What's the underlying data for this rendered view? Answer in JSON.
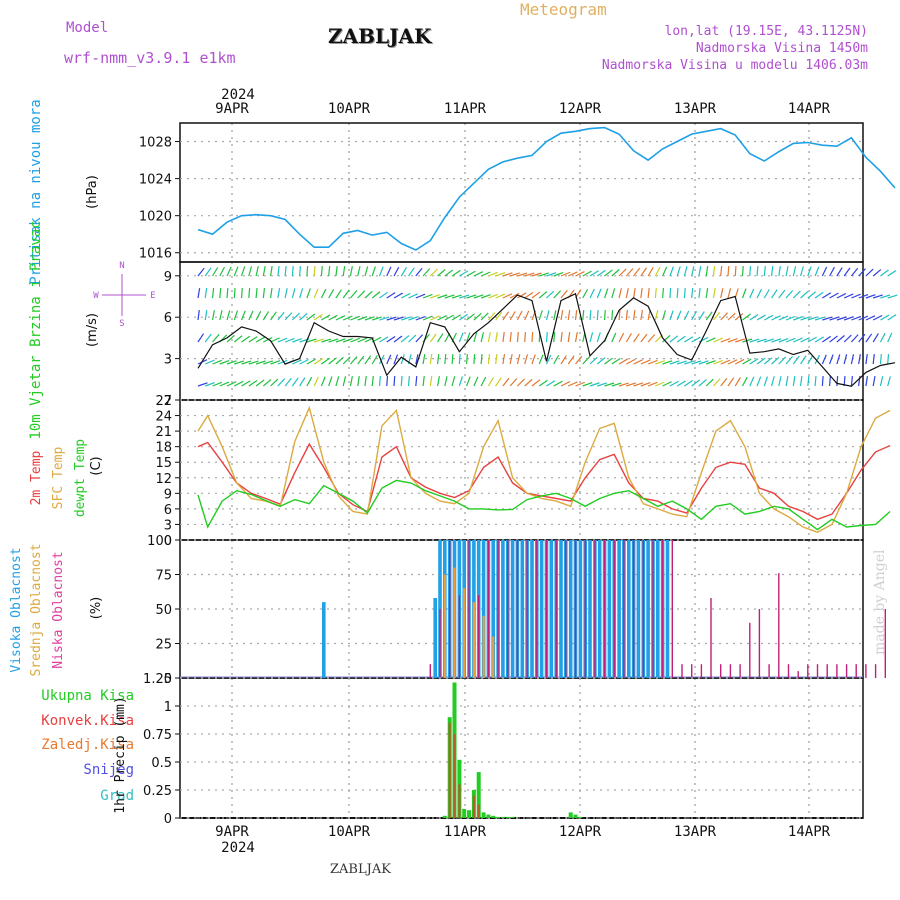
{
  "header": {
    "model_label": "Model",
    "model_name": "wrf-nmm_v3.9.1  e1km",
    "station": "ZABLJAK",
    "meteogram": "Meteogram",
    "lonlat": "lon,lat (19.15E, 43.1125N)",
    "altitude": "Nadmorska Visina 1450m",
    "altitude_model": "Nadmorska Visina u modelu 1406.03m",
    "year_top": "2024",
    "year_bottom": "2024",
    "footer_station": "ZABLJAK",
    "watermark": "made by Angel",
    "days": [
      "9APR",
      "10APR",
      "11APR",
      "12APR",
      "13APR",
      "14APR"
    ]
  },
  "colors": {
    "pressure": "#1ea0e6",
    "temp2m": "#e84040",
    "sfc": "#dcaa40",
    "dewpt": "#22cc22",
    "high_cloud": "#22a0e6",
    "mid_cloud": "#e6a040",
    "low_cloud": "#c0207a",
    "precip_total": "#22cc22",
    "precip_conv": "#e84040",
    "precip_frz": "#e67a30",
    "snow": "#5050e0",
    "grad": "#30c0c0",
    "purple": "#b050d0"
  },
  "chart_data": [
    {
      "type": "line",
      "panel": "pressure",
      "ylabel": "Pritisak na nivou mora",
      "unit": "(hPa)",
      "ylim": [
        1015,
        1030
      ],
      "yticks": [
        1016,
        1020,
        1024,
        1028
      ],
      "grid": true,
      "x_unit": "hours since 2024-04-08 18:00",
      "series": [
        {
          "x": [
            0,
            3,
            6,
            9,
            12,
            15,
            18,
            21,
            24,
            27,
            30,
            33,
            36,
            39,
            42,
            45,
            48,
            51,
            54,
            57,
            60,
            63,
            66,
            69,
            72,
            75,
            78,
            81,
            84,
            87,
            90,
            93,
            96,
            99,
            102,
            105,
            108,
            111,
            114,
            117,
            120,
            123,
            126,
            129,
            132,
            135,
            138,
            141,
            144
          ],
          "values": [
            1018.5,
            1018.0,
            1019.3,
            1020.0,
            1020.1,
            1020.0,
            1019.6,
            1018.0,
            1016.6,
            1016.6,
            1018.1,
            1018.4,
            1017.9,
            1018.2,
            1017.0,
            1016.3,
            1017.3,
            1019.8,
            1022.0,
            1023.5,
            1025.0,
            1025.8,
            1026.2,
            1026.5,
            1028.0,
            1028.9,
            1029.1,
            1029.4,
            1029.5,
            1028.8,
            1027.0,
            1026.0,
            1027.2,
            1028.0,
            1028.8,
            1029.1,
            1029.4,
            1028.7,
            1026.7,
            1025.9,
            1026.9,
            1027.8,
            1027.9,
            1027.6,
            1027.5,
            1028.4,
            1026.3,
            1024.8,
            1023.0
          ]
        }
      ]
    },
    {
      "type": "line",
      "panel": "wind",
      "ylabel": "10m Vjetar Brzina i Pravac",
      "unit": "(m/s)",
      "compass": "N",
      "compass_w": "W",
      "compass_e": "E",
      "compass_s": "S",
      "ylim": [
        0,
        10
      ],
      "ytick_labels": [
        "3",
        "6",
        "9"
      ],
      "ytick_values": [
        3,
        6,
        9
      ],
      "grid": true,
      "x_unit": "hours since 2024-04-08 18:00",
      "series": [
        {
          "x": [
            0,
            3,
            6,
            9,
            12,
            15,
            18,
            21,
            24,
            27,
            30,
            33,
            36,
            39,
            42,
            45,
            48,
            51,
            54,
            57,
            60,
            63,
            66,
            69,
            72,
            75,
            78,
            81,
            84,
            87,
            90,
            93,
            96,
            99,
            102,
            105,
            108,
            111,
            114,
            117,
            120,
            123,
            126,
            129,
            132,
            135,
            138,
            141,
            144
          ],
          "values": [
            2.3,
            4.0,
            4.5,
            5.3,
            5.0,
            4.3,
            2.6,
            3.0,
            5.6,
            5.0,
            4.6,
            4.6,
            4.5,
            1.8,
            3.1,
            2.4,
            5.6,
            5.3,
            3.5,
            4.8,
            5.6,
            6.6,
            7.6,
            7.2,
            2.8,
            7.2,
            7.7,
            3.2,
            4.3,
            6.5,
            7.4,
            6.8,
            4.5,
            3.3,
            2.9,
            5.0,
            7.2,
            7.5,
            3.4,
            3.5,
            3.7,
            3.3,
            3.6,
            2.4,
            1.2,
            1.0,
            2.0,
            2.5,
            2.7
          ]
        }
      ]
    },
    {
      "type": "line",
      "panel": "temperature",
      "ylabel_2m": "2m Temp",
      "ylabel_sfc": "SFC Temp",
      "ylabel_dew": "dewpt Temp",
      "unit": "(C)",
      "ylim": [
        0,
        27
      ],
      "yticks": [
        0,
        3,
        6,
        9,
        12,
        15,
        18,
        21,
        24,
        27
      ],
      "grid": true,
      "x_unit": "hours since 2024-04-08 18:00",
      "series": [
        {
          "name": "2m Temp",
          "x": [
            0,
            2,
            5,
            8,
            11,
            14,
            17,
            20,
            23,
            26,
            29,
            32,
            35,
            38,
            41,
            44,
            47,
            50,
            53,
            56,
            59,
            62,
            65,
            68,
            71,
            74,
            77,
            80,
            83,
            86,
            89,
            92,
            95,
            98,
            101,
            104,
            107,
            110,
            113,
            116,
            119,
            122,
            125,
            128,
            131,
            134,
            137,
            140,
            143
          ],
          "values": [
            18.0,
            18.8,
            15.0,
            11.0,
            9.0,
            8.0,
            6.9,
            13.0,
            18.5,
            14.0,
            9.0,
            6.8,
            5.5,
            16.0,
            18.0,
            12.0,
            10.2,
            9.0,
            8.2,
            9.5,
            14.0,
            16.0,
            11.0,
            9.0,
            8.5,
            8.0,
            7.5,
            12.0,
            15.5,
            16.5,
            11.0,
            8.0,
            7.5,
            6.0,
            5.2,
            10.0,
            14.0,
            15.0,
            14.6,
            10.0,
            9.0,
            6.5,
            5.5,
            4.0,
            5.0,
            9.0,
            13.5,
            17.0,
            18.2
          ]
        },
        {
          "name": "SFC Temp",
          "x": [
            0,
            2,
            5,
            8,
            11,
            14,
            17,
            20,
            23,
            26,
            29,
            32,
            35,
            38,
            41,
            44,
            47,
            50,
            53,
            56,
            59,
            62,
            65,
            68,
            71,
            74,
            77,
            80,
            83,
            86,
            89,
            92,
            95,
            98,
            101,
            104,
            107,
            110,
            113,
            116,
            119,
            122,
            125,
            128,
            131,
            134,
            137,
            140,
            143
          ],
          "values": [
            21.0,
            24.0,
            18.0,
            11.0,
            8.0,
            7.5,
            6.5,
            19.0,
            25.5,
            15.0,
            8.5,
            5.5,
            5.0,
            22.0,
            25.0,
            12.0,
            9.0,
            7.5,
            7.0,
            9.0,
            18.0,
            23.0,
            12.0,
            9.0,
            8.0,
            7.5,
            6.5,
            15.0,
            21.5,
            22.5,
            12.0,
            7.0,
            6.0,
            5.0,
            4.5,
            13.0,
            21.0,
            23.0,
            18.0,
            9.0,
            6.0,
            4.5,
            2.5,
            1.5,
            3.0,
            9.0,
            18.0,
            23.5,
            25.0
          ]
        },
        {
          "name": "dewpt Temp",
          "x": [
            0,
            2,
            5,
            8,
            11,
            14,
            17,
            20,
            23,
            26,
            29,
            32,
            35,
            38,
            41,
            44,
            47,
            50,
            53,
            56,
            59,
            62,
            65,
            68,
            71,
            74,
            77,
            80,
            83,
            86,
            89,
            92,
            95,
            98,
            101,
            104,
            107,
            110,
            113,
            116,
            119,
            122,
            125,
            128,
            131,
            134,
            137,
            140,
            143
          ],
          "values": [
            8.7,
            2.5,
            7.5,
            9.5,
            8.8,
            7.6,
            6.5,
            7.8,
            7.0,
            10.5,
            9.0,
            7.5,
            5.2,
            10.0,
            11.5,
            11.0,
            9.5,
            8.5,
            7.5,
            6.0,
            6.0,
            5.8,
            5.9,
            7.8,
            8.5,
            9.0,
            8.0,
            6.5,
            8.0,
            9.0,
            9.5,
            8.0,
            6.5,
            7.5,
            6.0,
            4.0,
            6.5,
            7.0,
            5.0,
            5.5,
            6.5,
            6.0,
            4.0,
            2.0,
            4.0,
            2.5,
            2.8,
            3.0,
            5.5
          ]
        }
      ]
    },
    {
      "type": "bar",
      "panel": "clouds",
      "ylabel_high": "Visoka Oblacnost",
      "ylabel_mid": "Srednja Oblacnost",
      "ylabel_low": "Niska Oblacnost",
      "unit": "(%)",
      "ylim": [
        0,
        100
      ],
      "yticks": [
        0,
        25,
        50,
        75,
        100
      ],
      "grid": true,
      "x_unit": "hours since 2024-04-08 18:00",
      "series": [
        {
          "name": "Visoka Oblacnost",
          "x": [
            26,
            49,
            50,
            51,
            52,
            53,
            54,
            55,
            56,
            57,
            58,
            59,
            60,
            61,
            62,
            63,
            64,
            65,
            66,
            67,
            68,
            69,
            70,
            71,
            72,
            73,
            74,
            75,
            76,
            77,
            78,
            79,
            80,
            81,
            82,
            83,
            84,
            85,
            86,
            87,
            88,
            89,
            90,
            91,
            92,
            93,
            94,
            95,
            96,
            97
          ],
          "values": [
            55,
            58,
            100,
            100,
            100,
            100,
            100,
            100,
            100,
            100,
            100,
            100,
            100,
            100,
            100,
            100,
            100,
            100,
            100,
            100,
            100,
            100,
            100,
            100,
            100,
            100,
            100,
            100,
            100,
            100,
            100,
            100,
            100,
            100,
            100,
            100,
            100,
            100,
            100,
            100,
            100,
            100,
            100,
            100,
            100,
            100,
            100,
            100,
            100,
            100
          ]
        },
        {
          "name": "Srednja Oblacnost",
          "x": [
            51,
            53,
            55,
            57,
            59,
            61
          ],
          "values": [
            75,
            80,
            65,
            55,
            45,
            30
          ]
        },
        {
          "name": "Niska Oblacnost",
          "x": [
            48,
            50,
            52,
            54,
            56,
            58,
            60,
            62,
            64,
            66,
            68,
            70,
            72,
            74,
            76,
            78,
            80,
            82,
            84,
            86,
            88,
            90,
            92,
            94,
            96,
            98,
            100,
            102,
            104,
            106,
            108,
            110,
            112,
            114,
            116,
            118,
            120,
            122,
            124,
            126,
            128,
            130,
            132,
            134,
            136,
            138,
            140,
            142
          ],
          "values": [
            10,
            50,
            100,
            60,
            100,
            60,
            100,
            100,
            100,
            100,
            100,
            100,
            100,
            100,
            100,
            100,
            100,
            100,
            100,
            100,
            100,
            100,
            100,
            100,
            100,
            100,
            10,
            10,
            10,
            58,
            10,
            10,
            10,
            40,
            50,
            10,
            76,
            10,
            5,
            10,
            10,
            10,
            10,
            10,
            10,
            10,
            10,
            50
          ]
        }
      ]
    },
    {
      "type": "bar",
      "panel": "precip",
      "ylabel": "1hr Precip",
      "unit": "(mm)",
      "legend": [
        "Ukupna Kisa",
        "Konvek.Kisa",
        "Zaledj.Kisa",
        "Snijeg",
        "Grad"
      ],
      "ylim": [
        0,
        1.25
      ],
      "yticks": [
        0,
        0.25,
        0.5,
        0.75,
        1,
        1.25
      ],
      "ytick_labels": [
        "0",
        "0.25",
        "0.5",
        "0.75",
        "1",
        "1.25"
      ],
      "grid": true,
      "x_unit": "hours since 2024-04-08 18:00",
      "series": [
        {
          "name": "Ukupna Kisa",
          "x": [
            51,
            52,
            53,
            54,
            55,
            56,
            57,
            58,
            59,
            60,
            61,
            62,
            63,
            64,
            65,
            77,
            78,
            79
          ],
          "values": [
            0.02,
            0.9,
            1.21,
            0.52,
            0.08,
            0.07,
            0.25,
            0.41,
            0.05,
            0.03,
            0.02,
            0.01,
            0.01,
            0.01,
            0.01,
            0.05,
            0.03,
            0.01
          ]
        },
        {
          "name": "Konvek.Kisa",
          "x": [
            52,
            53,
            54,
            57,
            58
          ],
          "values": [
            0.85,
            0.75,
            0.3,
            0.2,
            0.12
          ]
        }
      ]
    }
  ]
}
